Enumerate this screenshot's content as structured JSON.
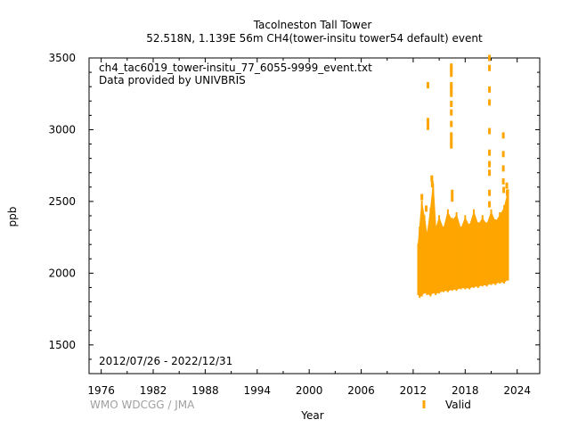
{
  "chart_data": {
    "type": "scatter",
    "title_line1": "Tacolneston Tall Tower",
    "title_line2": "52.518N, 1.139E 56m     CH4(tower-insitu tower54 default) event",
    "file_label": "ch4_tac6019_tower-insitu_77_6055-9999_event.txt",
    "provider": "Data provided by UNIVBRIS",
    "date_range": "2012/07/26 - 2022/12/31",
    "xlabel": "Year",
    "ylabel": "ppb",
    "credit": "WMO WDCGG / JMA",
    "legend_label": "Valid",
    "marker_color": "#ffa500",
    "xlim": [
      1974.6,
      2026.6
    ],
    "ylim": [
      1300,
      3500
    ],
    "x_ticks": [
      1976,
      1982,
      1988,
      1994,
      2000,
      2006,
      2012,
      2018,
      2024
    ],
    "y_ticks": [
      1500,
      2000,
      2500,
      3000,
      3500
    ],
    "envelope": [
      {
        "x": 2012.57,
        "low": 1860,
        "high": 2180
      },
      {
        "x": 2012.75,
        "low": 1840,
        "high": 2300
      },
      {
        "x": 2013.0,
        "low": 1850,
        "high": 2480
      },
      {
        "x": 2013.3,
        "low": 1870,
        "high": 2380
      },
      {
        "x": 2013.6,
        "low": 1860,
        "high": 2250
      },
      {
        "x": 2014.0,
        "low": 1850,
        "high": 2430
      },
      {
        "x": 2014.3,
        "low": 1870,
        "high": 2600
      },
      {
        "x": 2014.6,
        "low": 1860,
        "high": 2300
      },
      {
        "x": 2015.0,
        "low": 1870,
        "high": 2380
      },
      {
        "x": 2015.5,
        "low": 1880,
        "high": 2300
      },
      {
        "x": 2016.0,
        "low": 1880,
        "high": 2420
      },
      {
        "x": 2016.5,
        "low": 1890,
        "high": 2360
      },
      {
        "x": 2017.0,
        "low": 1890,
        "high": 2400
      },
      {
        "x": 2017.5,
        "low": 1900,
        "high": 2300
      },
      {
        "x": 2018.0,
        "low": 1900,
        "high": 2380
      },
      {
        "x": 2018.5,
        "low": 1900,
        "high": 2320
      },
      {
        "x": 2019.0,
        "low": 1910,
        "high": 2420
      },
      {
        "x": 2019.5,
        "low": 1910,
        "high": 2330
      },
      {
        "x": 2020.0,
        "low": 1920,
        "high": 2380
      },
      {
        "x": 2020.5,
        "low": 1920,
        "high": 2330
      },
      {
        "x": 2021.0,
        "low": 1930,
        "high": 2420
      },
      {
        "x": 2021.5,
        "low": 1930,
        "high": 2350
      },
      {
        "x": 2022.0,
        "low": 1940,
        "high": 2400
      },
      {
        "x": 2022.5,
        "low": 1940,
        "high": 2450
      },
      {
        "x": 2022.95,
        "low": 1960,
        "high": 2560
      }
    ],
    "outliers": [
      {
        "x": 2013.0,
        "y": 2530
      },
      {
        "x": 2013.5,
        "y": 2450
      },
      {
        "x": 2013.7,
        "y": 3310
      },
      {
        "x": 2013.7,
        "y": 3060
      },
      {
        "x": 2013.7,
        "y": 3020
      },
      {
        "x": 2014.15,
        "y": 2660
      },
      {
        "x": 2014.2,
        "y": 2620
      },
      {
        "x": 2016.4,
        "y": 3440
      },
      {
        "x": 2016.4,
        "y": 3420
      },
      {
        "x": 2016.4,
        "y": 3390
      },
      {
        "x": 2016.4,
        "y": 3310
      },
      {
        "x": 2016.4,
        "y": 3280
      },
      {
        "x": 2016.4,
        "y": 3250
      },
      {
        "x": 2016.4,
        "y": 3180
      },
      {
        "x": 2016.4,
        "y": 3120
      },
      {
        "x": 2016.4,
        "y": 3040
      },
      {
        "x": 2016.4,
        "y": 2960
      },
      {
        "x": 2016.4,
        "y": 2920
      },
      {
        "x": 2016.4,
        "y": 2890
      },
      {
        "x": 2016.5,
        "y": 2560
      },
      {
        "x": 2016.5,
        "y": 2520
      },
      {
        "x": 2020.8,
        "y": 3500
      },
      {
        "x": 2020.8,
        "y": 3430
      },
      {
        "x": 2020.8,
        "y": 3280
      },
      {
        "x": 2020.8,
        "y": 3190
      },
      {
        "x": 2020.8,
        "y": 2990
      },
      {
        "x": 2020.8,
        "y": 2840
      },
      {
        "x": 2020.8,
        "y": 2760
      },
      {
        "x": 2020.8,
        "y": 2700
      },
      {
        "x": 2020.8,
        "y": 2560
      },
      {
        "x": 2020.8,
        "y": 2480
      },
      {
        "x": 2022.4,
        "y": 2960
      },
      {
        "x": 2022.4,
        "y": 2830
      },
      {
        "x": 2022.4,
        "y": 2730
      },
      {
        "x": 2022.4,
        "y": 2640
      },
      {
        "x": 2022.45,
        "y": 2580
      },
      {
        "x": 2022.8,
        "y": 2610
      },
      {
        "x": 2022.85,
        "y": 2560
      }
    ]
  }
}
